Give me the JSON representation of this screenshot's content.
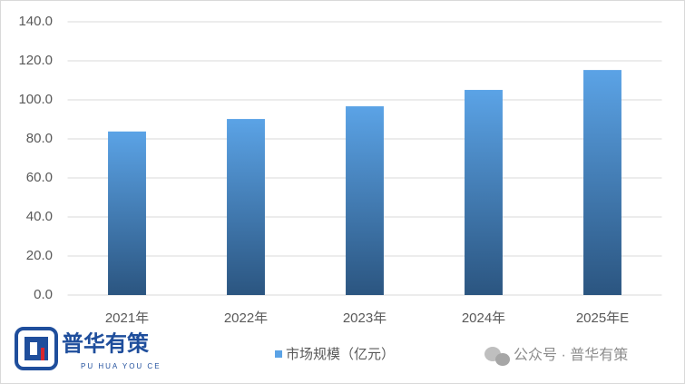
{
  "chart_data": {
    "type": "bar",
    "categories": [
      "2021年",
      "2022年",
      "2023年",
      "2024年",
      "2025年E"
    ],
    "series": [
      {
        "name": "市场规模（亿元）",
        "color": "#5ba3e6",
        "values": [
          83.8,
          90.2,
          96.7,
          105.1,
          115.3
        ]
      }
    ],
    "ylim": [
      0,
      140
    ],
    "yticks": [
      {
        "value": 0,
        "label": "0.0"
      },
      {
        "value": 20,
        "label": "20.0"
      },
      {
        "value": 40,
        "label": "40.0"
      },
      {
        "value": 60,
        "label": "60.0"
      },
      {
        "value": 80,
        "label": "80.0"
      },
      {
        "value": 100,
        "label": "100.0"
      },
      {
        "value": 120,
        "label": "120.0"
      },
      {
        "value": 140,
        "label": "140.0"
      }
    ],
    "grid": true,
    "legend": "bottom",
    "annotations": [
      "普华有策",
      "PU HUA YOU CE",
      "公众号 · 普华有策"
    ]
  }
}
